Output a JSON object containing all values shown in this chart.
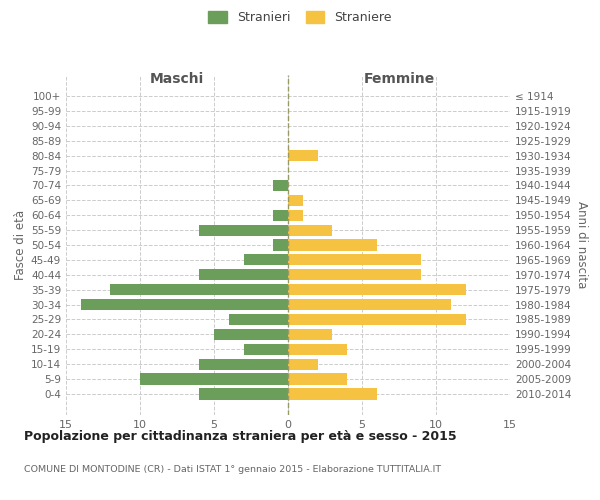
{
  "age_groups": [
    "100+",
    "95-99",
    "90-94",
    "85-89",
    "80-84",
    "75-79",
    "70-74",
    "65-69",
    "60-64",
    "55-59",
    "50-54",
    "45-49",
    "40-44",
    "35-39",
    "30-34",
    "25-29",
    "20-24",
    "15-19",
    "10-14",
    "5-9",
    "0-4"
  ],
  "birth_years": [
    "≤ 1914",
    "1915-1919",
    "1920-1924",
    "1925-1929",
    "1930-1934",
    "1935-1939",
    "1940-1944",
    "1945-1949",
    "1950-1954",
    "1955-1959",
    "1960-1964",
    "1965-1969",
    "1970-1974",
    "1975-1979",
    "1980-1984",
    "1985-1989",
    "1990-1994",
    "1995-1999",
    "2000-2004",
    "2005-2009",
    "2010-2014"
  ],
  "maschi": [
    0,
    0,
    0,
    0,
    0,
    0,
    1,
    0,
    1,
    6,
    1,
    3,
    6,
    12,
    14,
    4,
    5,
    3,
    6,
    10,
    6
  ],
  "femmine": [
    0,
    0,
    0,
    0,
    2,
    0,
    0,
    1,
    1,
    3,
    6,
    9,
    9,
    12,
    11,
    12,
    3,
    4,
    2,
    4,
    6
  ],
  "maschi_color": "#6a9e5a",
  "femmine_color": "#f5c242",
  "title": "Popolazione per cittadinanza straniera per età e sesso - 2015",
  "subtitle": "COMUNE DI MONTODINE (CR) - Dati ISTAT 1° gennaio 2015 - Elaborazione TUTTITALIA.IT",
  "xlabel_left": "Maschi",
  "xlabel_right": "Femmine",
  "ylabel_left": "Fasce di età",
  "ylabel_right": "Anni di nascita",
  "legend_maschi": "Stranieri",
  "legend_femmine": "Straniere",
  "xlim": 15,
  "background_color": "#ffffff",
  "grid_color": "#cccccc"
}
